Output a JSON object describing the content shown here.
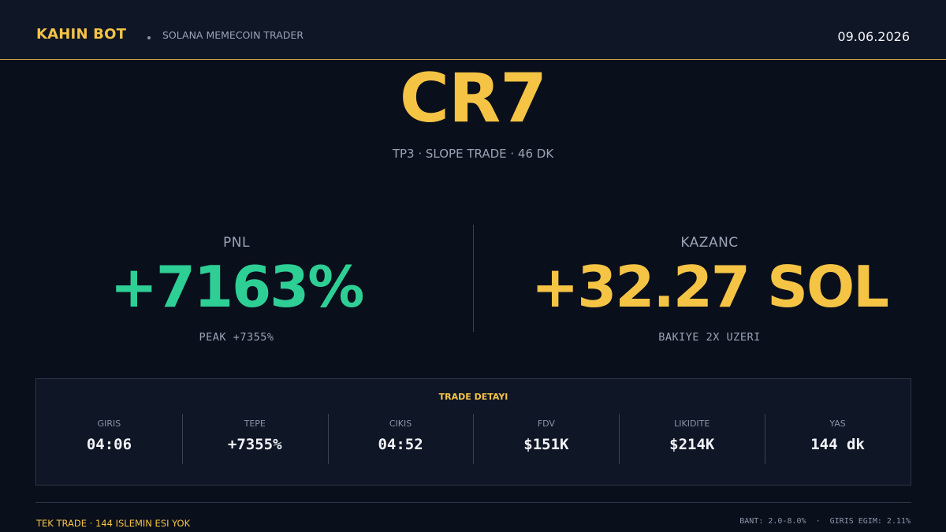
{
  "header": {
    "brand": "KAHIN BOT",
    "subtitle": "SOLANA MEMECOIN TRADER",
    "date": "09.06.2026"
  },
  "token": {
    "name": "CR7",
    "meta": "TP3 · SLOPE TRADE · 46 DK"
  },
  "pnl": {
    "label": "PNL",
    "value": "+7163%",
    "note": "PEAK +7355%"
  },
  "kazanc": {
    "label": "KAZANC",
    "value": "+32.27 SOL",
    "note": "BAKIYE 2X UZERI"
  },
  "detail": {
    "title": "TRADE DETAYI",
    "items": [
      {
        "label": "GIRIS",
        "value": "04:06"
      },
      {
        "label": "TEPE",
        "value": "+7355%"
      },
      {
        "label": "CIKIS",
        "value": "04:52"
      },
      {
        "label": "FDV",
        "value": "$151K"
      },
      {
        "label": "LIKIDITE",
        "value": "$214K"
      },
      {
        "label": "YAS",
        "value": "144 dk"
      }
    ]
  },
  "footer": {
    "left": "TEK TRADE · 144 ISLEMIN ESI YOK",
    "right": "BANT: 2.0-8.0%  ·  GIRIS EGIM: 2.11%"
  },
  "colors": {
    "accent": "#f5c445",
    "positive": "#2ecf95",
    "background": "#0a0f1c"
  }
}
